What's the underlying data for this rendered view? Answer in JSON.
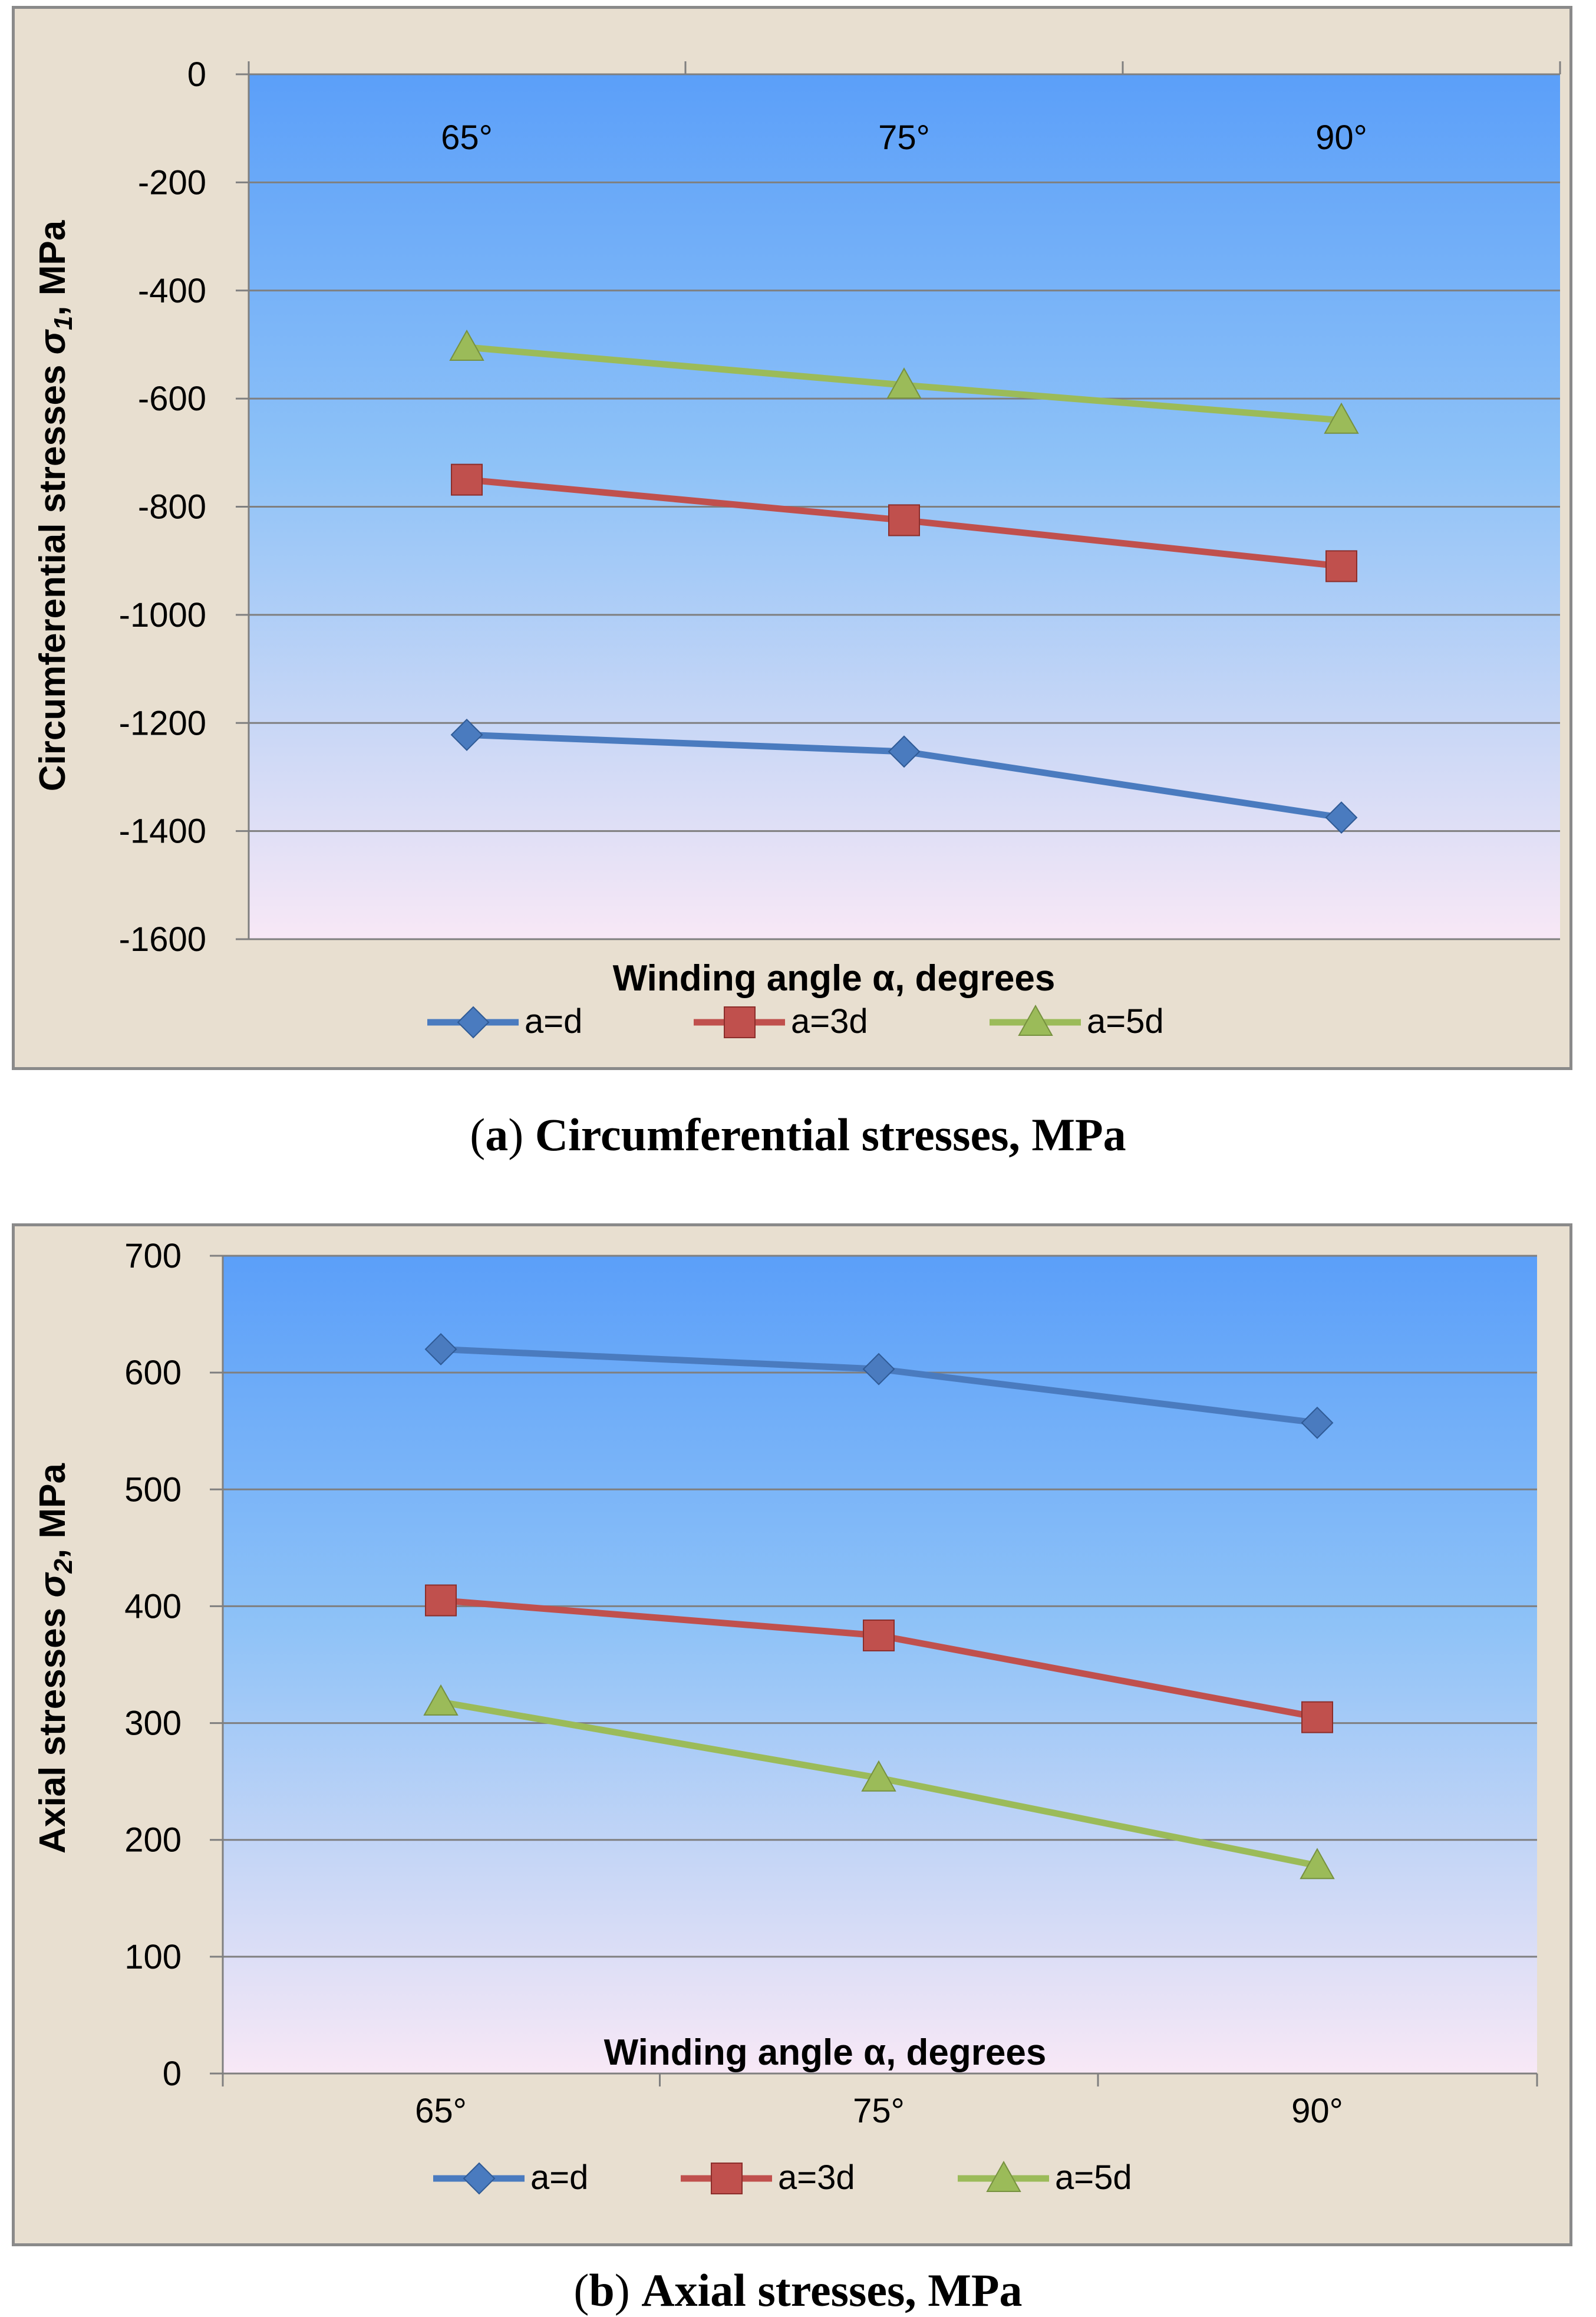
{
  "chart_data": [
    {
      "type": "line",
      "panel": "a",
      "title": "",
      "xlabel": "Winding angle α, degrees",
      "ylabel_main": "Circumferential stresses  ",
      "ylabel_sigma": "σ",
      "ylabel_sub": "1",
      "ylabel_tail": ", MPa",
      "categories": [
        "65°",
        "75°",
        "90°"
      ],
      "ylim": [
        -1600,
        0
      ],
      "yticks": [
        0,
        -200,
        -400,
        -600,
        -800,
        -1000,
        -1200,
        -1400,
        -1600
      ],
      "ytick_labels": [
        "0",
        "-200",
        "-400",
        "-600",
        "-800",
        "-1000",
        "-1200",
        "-1400",
        "-1600"
      ],
      "xaxis_position": "top",
      "series": [
        {
          "name": "a=d",
          "marker": "diamond",
          "color": "#4a7bbf",
          "values": [
            -1222,
            -1253,
            -1375
          ]
        },
        {
          "name": "a=3d",
          "marker": "square",
          "color": "#c0504d",
          "values": [
            -750,
            -825,
            -910
          ]
        },
        {
          "name": "a=5d",
          "marker": "triangle",
          "color": "#9bbb59",
          "values": [
            -505,
            -575,
            -640
          ]
        }
      ],
      "legend": "bottom"
    },
    {
      "type": "line",
      "panel": "b",
      "title": "",
      "xlabel": "Winding angle α, degrees",
      "ylabel_main": "Axial stresses ",
      "ylabel_sigma": "σ",
      "ylabel_sub": "2",
      "ylabel_tail": ", MPa",
      "categories": [
        "65°",
        "75°",
        "90°"
      ],
      "ylim": [
        0,
        700
      ],
      "yticks": [
        700,
        600,
        500,
        400,
        300,
        200,
        100,
        0
      ],
      "ytick_labels": [
        "700",
        "600",
        "500",
        "400",
        "300",
        "200",
        "100",
        "0"
      ],
      "xaxis_position": "bottom",
      "series": [
        {
          "name": "a=d",
          "marker": "diamond",
          "color": "#4a7bbf",
          "values": [
            620,
            603,
            557
          ]
        },
        {
          "name": "a=3d",
          "marker": "square",
          "color": "#c0504d",
          "values": [
            405,
            375,
            305
          ]
        },
        {
          "name": "a=5d",
          "marker": "triangle",
          "color": "#9bbb59",
          "values": [
            318,
            253,
            178
          ]
        }
      ],
      "legend": "bottom"
    }
  ],
  "captions": {
    "a_letter": "a",
    "a_text": "Circumferential stresses, MPa",
    "b_letter": "b",
    "b_text": "Axial stresses, MPa"
  },
  "colors": {
    "plot_top": "#5b9ff9",
    "plot_bottom": "#f6e8f6",
    "panel_bg": "#e8dfd0",
    "grid": "#7f7f7f"
  }
}
